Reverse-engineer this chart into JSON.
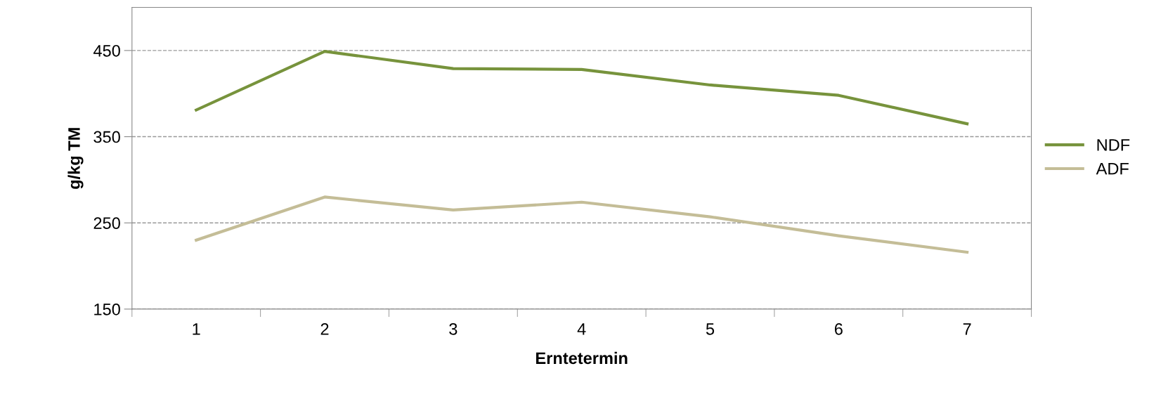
{
  "chart_data": {
    "type": "line",
    "xlabel": "Erntetermin",
    "ylabel": "g/kg TM",
    "categories": [
      "1",
      "2",
      "3",
      "4",
      "5",
      "6",
      "7"
    ],
    "series": [
      {
        "name": "NDF",
        "color": "#77933c",
        "values": [
          381,
          449,
          429,
          428,
          410,
          398,
          365
        ]
      },
      {
        "name": "ADF",
        "color": "#c4bd97",
        "values": [
          230,
          280,
          265,
          274,
          257,
          235,
          216
        ]
      }
    ],
    "ylim": [
      150,
      500
    ],
    "yticks": [
      150,
      250,
      350,
      450
    ],
    "grid": "y",
    "legend": "right",
    "marker": "none",
    "line_style": "solid"
  }
}
